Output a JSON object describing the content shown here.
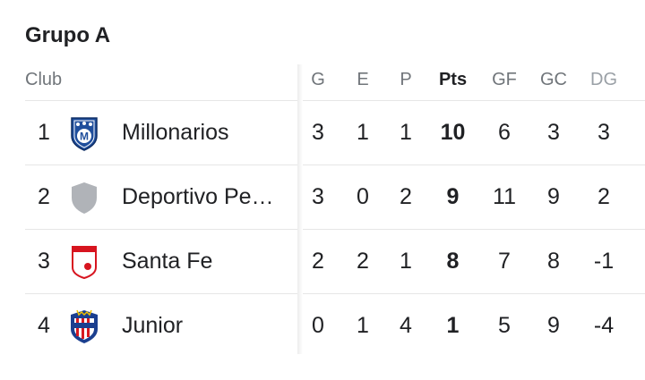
{
  "title": "Grupo A",
  "headers": {
    "club": "Club",
    "g": "G",
    "e": "E",
    "p": "P",
    "pts": "Pts",
    "gf": "GF",
    "gc": "GC",
    "dg": "DG"
  },
  "rows": [
    {
      "pos": "1",
      "club": "Millonarios",
      "logo": "millonarios-crest-icon",
      "g": "3",
      "e": "1",
      "p": "1",
      "pts": "10",
      "gf": "6",
      "gc": "3",
      "dg": "3"
    },
    {
      "pos": "2",
      "club": "Deportivo Pe…",
      "logo": "generic-shield-icon",
      "g": "3",
      "e": "0",
      "p": "2",
      "pts": "9",
      "gf": "11",
      "gc": "9",
      "dg": "2"
    },
    {
      "pos": "3",
      "club": "Santa Fe",
      "logo": "santa-fe-crest-icon",
      "g": "2",
      "e": "2",
      "p": "1",
      "pts": "8",
      "gf": "7",
      "gc": "8",
      "dg": "-1"
    },
    {
      "pos": "4",
      "club": "Junior",
      "logo": "junior-crest-icon",
      "g": "0",
      "e": "1",
      "p": "4",
      "pts": "1",
      "gf": "5",
      "gc": "9",
      "dg": "-4"
    }
  ],
  "colors": {
    "millonarios_blue": "#1f4e9c",
    "santa_fe_red": "#d7141f",
    "junior_red": "#d71920",
    "shield_gray": "#b0b3b8"
  }
}
